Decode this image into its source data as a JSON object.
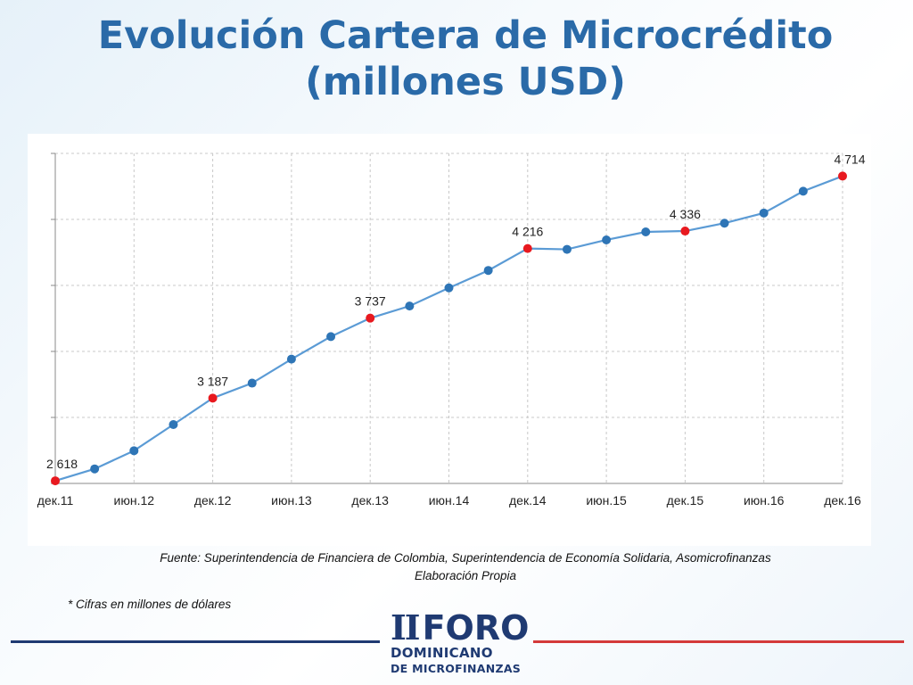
{
  "title_line1": "Evolución Cartera de Microcrédito",
  "title_line2": "(millones USD)",
  "source_line1": "Fuente: Superintendencia de Financiera de Colombia, Superintendencia de Economía Solidaria, Asomicrofinanzas",
  "source_line2": "Elaboración Propia",
  "note": "* Cifras en millones de dólares",
  "logo": {
    "roman": "II",
    "foro": "FORO",
    "line1": "DOMINICANO",
    "line2": "DE MICROFINANZAS"
  },
  "colors": {
    "title": "#2a6aa8",
    "line": "#5b9bd5",
    "marker": "#2e75b6",
    "highlight": "#e8191f",
    "brand_blue": "#1f3a72",
    "brand_red": "#d43a3a"
  },
  "chart_data": {
    "type": "line",
    "title": "",
    "xlabel": "",
    "ylabel": "",
    "x_ticks": [
      "дек.11",
      "июн.12",
      "дек.12",
      "июн.13",
      "дек.13",
      "июн.14",
      "дек.14",
      "июн.15",
      "дек.15",
      "июн.16",
      "дек.16"
    ],
    "ylim": [
      2600,
      4870
    ],
    "grid": true,
    "legend": "none",
    "series": [
      {
        "values": [
          2618,
          2700,
          2825,
          3005,
          3187,
          3290,
          3455,
          3610,
          3737,
          3820,
          3945,
          4065,
          4216,
          4210,
          4275,
          4330,
          4336,
          4390,
          4460,
          4610,
          4714
        ],
        "labels": [
          {
            "index": 0,
            "text": "2 618"
          },
          {
            "index": 4,
            "text": "3 187"
          },
          {
            "index": 8,
            "text": "3 737"
          },
          {
            "index": 12,
            "text": "4 216"
          },
          {
            "index": 16,
            "text": "4 336"
          },
          {
            "index": 20,
            "text": "4 714"
          }
        ]
      }
    ]
  }
}
